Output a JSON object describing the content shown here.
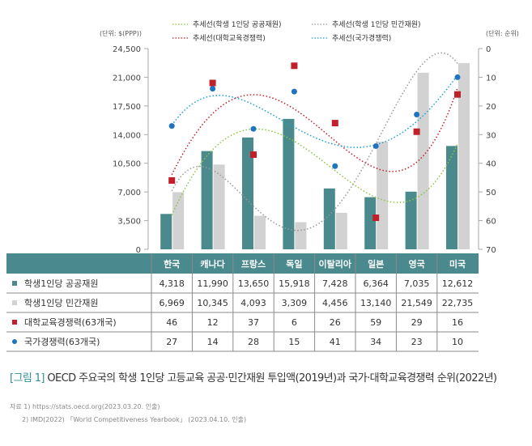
{
  "chart_data": {
    "type": "bar",
    "categories": [
      "한국",
      "캐나다",
      "프랑스",
      "독일",
      "이탈리아",
      "일본",
      "영국",
      "미국"
    ],
    "left_axis": {
      "unit_label": "(단위: $(PPP))",
      "ylim": [
        0,
        24500
      ],
      "ticks": [
        0,
        3500,
        7000,
        10500,
        14000,
        17500,
        21000,
        24500
      ],
      "tick_labels": [
        "0",
        "3,500",
        "7,000",
        "10,500",
        "14,000",
        "17,500",
        "21,000",
        "24,500"
      ]
    },
    "right_axis": {
      "unit_label": "(단위: 순위)",
      "ylim": [
        0,
        70
      ],
      "inverted": true,
      "ticks": [
        0,
        10,
        20,
        30,
        40,
        50,
        60,
        70
      ],
      "tick_labels": [
        "0",
        "10",
        "20",
        "30",
        "40",
        "50",
        "60",
        "70"
      ]
    },
    "series": [
      {
        "name": "학생1인당 공공재원",
        "type": "bar",
        "axis": "left",
        "color": "#4a8a8c",
        "values": [
          4318,
          11990,
          13650,
          15918,
          7428,
          6364,
          7035,
          12612
        ],
        "labels": [
          "4,318",
          "11,990",
          "13,650",
          "15,918",
          "7,428",
          "6,364",
          "7,035",
          "12,612"
        ]
      },
      {
        "name": "학생1인당 민간재원",
        "type": "bar",
        "axis": "left",
        "color": "#d2d2d2",
        "values": [
          6969,
          10345,
          4093,
          3309,
          4456,
          13140,
          21549,
          22735
        ],
        "labels": [
          "6,969",
          "10,345",
          "4,093",
          "3,309",
          "4,456",
          "13,140",
          "21,549",
          "22,735"
        ]
      },
      {
        "name": "대학교육경쟁력(63개국)",
        "type": "scatter",
        "marker": "square",
        "axis": "right",
        "color": "#c0202a",
        "values": [
          46,
          12,
          37,
          6,
          26,
          59,
          29,
          16
        ],
        "labels": [
          "46",
          "12",
          "37",
          "6",
          "26",
          "59",
          "29",
          "16"
        ]
      },
      {
        "name": "국가경쟁력(63개국)",
        "type": "scatter",
        "marker": "circle",
        "axis": "right",
        "color": "#1f74c0",
        "values": [
          27,
          14,
          28,
          15,
          41,
          34,
          23,
          10
        ],
        "labels": [
          "27",
          "14",
          "28",
          "15",
          "41",
          "34",
          "23",
          "10"
        ]
      }
    ],
    "trendlines": [
      {
        "name": "추세선(학생 1인당 공공재원)",
        "of": 0,
        "color": "#8cc63f"
      },
      {
        "name": "추세선(학생 1인당 민간재원)",
        "of": 1,
        "color": "#999999"
      },
      {
        "name": "추세선(대학교육경쟁력)",
        "of": 2,
        "color": "#c0202a"
      },
      {
        "name": "추세선(국가경쟁력)",
        "of": 3,
        "color": "#1aa0d0"
      }
    ],
    "legend_placement": "top"
  },
  "caption": {
    "figure": "[그림 1]",
    "text": "OECD 주요국의 학생 1인당 고등교육 공공·민간재원 투입액(2019년)과 국가·대학교육경쟁력 순위(2022년)"
  },
  "sources": [
    "자료 1) https://stats.oecd.org(2023.03.20. 인출)",
    "2) IMD(2022) 「World Competitiveness Yearbook」 (2023.04.10. 인출)"
  ]
}
